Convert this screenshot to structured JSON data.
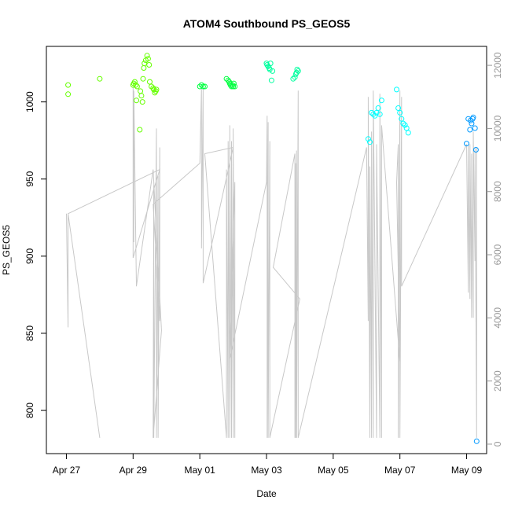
{
  "chart_data": {
    "type": "scatter",
    "title": "ATOM4 Southbound PS_GEOS5",
    "xlabel": "Date",
    "ylabel": "PS_GEOS5",
    "x_ticks": [
      "Apr 27",
      "Apr 29",
      "May 01",
      "May 03",
      "May 05",
      "May 07",
      "May 09"
    ],
    "xlim": [
      -0.6,
      12.6
    ],
    "ylim": [
      772,
      1036
    ],
    "y_ticks": [
      800,
      850,
      900,
      950,
      1000
    ],
    "y2lim": [
      -300,
      12600
    ],
    "y2_ticks": [
      0,
      2000,
      4000,
      6000,
      8000,
      10000,
      12000
    ],
    "grid": false,
    "legend": "none",
    "point_colors": [
      "#66ff00",
      "#00ff40",
      "#00ff9f",
      "#00ffff",
      "#0099ff"
    ],
    "line_color": "#c8c8c8",
    "series": [
      {
        "color": "#66ff00",
        "x": [
          0.05,
          0.05,
          1.0,
          2.0,
          2.02,
          2.05,
          2.08,
          2.1,
          2.12,
          2.2,
          2.22,
          2.25,
          2.28,
          2.3,
          2.32,
          2.34,
          2.38,
          2.42,
          2.45,
          2.48,
          2.5,
          2.55,
          2.6,
          2.62,
          2.65,
          2.68,
          2.7
        ],
        "y": [
          1011,
          1005,
          1015,
          1011,
          1012,
          1013,
          1011,
          1001,
          1010,
          982,
          1007,
          1004,
          1000,
          1015,
          1022,
          1025,
          1027,
          1030,
          1028,
          1024,
          1013,
          1010,
          1009,
          1008,
          1006,
          1007,
          1008
        ]
      },
      {
        "color": "#00ff40",
        "x": [
          4.0,
          4.05,
          4.1,
          4.15,
          4.8,
          4.85,
          4.88,
          4.9,
          4.92,
          4.95,
          4.98,
          5.0,
          5.02,
          5.05
        ],
        "y": [
          1010,
          1011,
          1010,
          1010,
          1015,
          1014,
          1013,
          1012,
          1011,
          1010,
          1011,
          1010,
          1012,
          1010
        ]
      },
      {
        "color": "#00ff9f",
        "x": [
          6.0,
          6.02,
          6.05,
          6.08,
          6.1,
          6.12,
          6.15,
          6.18,
          6.8,
          6.85,
          6.88,
          6.9,
          6.92,
          6.95
        ],
        "y": [
          1025,
          1024,
          1023,
          1022,
          1021,
          1025,
          1014,
          1020,
          1015,
          1016,
          1018,
          1019,
          1021,
          1020
        ]
      },
      {
        "color": "#00ffff",
        "x": [
          9.05,
          9.1,
          9.15,
          9.2,
          9.25,
          9.3,
          9.35,
          9.4,
          9.45,
          9.9,
          9.95,
          10.0,
          10.05,
          10.1,
          10.15,
          10.2,
          10.25
        ],
        "y": [
          976,
          974,
          993,
          992,
          991,
          993,
          996,
          992,
          1001,
          1008,
          996,
          993,
          989,
          986,
          985,
          983,
          980
        ]
      },
      {
        "color": "#0099ff",
        "x": [
          12.0,
          12.05,
          12.1,
          12.12,
          12.15,
          12.18,
          12.2,
          12.25,
          12.28,
          12.3
        ],
        "y": [
          973,
          989,
          982,
          988,
          986,
          989,
          990,
          983,
          969,
          780
        ]
      }
    ],
    "line_series": {
      "color": "#c8c8c8",
      "x": [
        0.0,
        0.05,
        0.05,
        1.0,
        0.05,
        2.8,
        2.0,
        2.0,
        2.02,
        2.02,
        2.1,
        2.6,
        2.85,
        2.6,
        2.62,
        2.62,
        2.7,
        2.7,
        2.75,
        2.75,
        2.8,
        2.8,
        2.6,
        4.0,
        4.05,
        4.05,
        4.1,
        4.1,
        5.0,
        4.15,
        4.8,
        4.8,
        4.85,
        4.85,
        4.9,
        4.9,
        4.95,
        4.95,
        5.0,
        5.0,
        5.05,
        5.05,
        4.9,
        6.0,
        6.02,
        6.02,
        6.05,
        6.05,
        6.1,
        6.1,
        7.0,
        6.2,
        6.85,
        6.85,
        6.88,
        6.88,
        6.9,
        6.9,
        6.95,
        6.95,
        9.0,
        9.05,
        9.05,
        9.1,
        9.1,
        9.15,
        9.15,
        9.2,
        9.2,
        9.3,
        9.3,
        9.4,
        9.4,
        9.45,
        9.45,
        10.0,
        9.9,
        9.95,
        9.95,
        10.0,
        10.0,
        10.05,
        10.05,
        12.0,
        12.05,
        12.05,
        12.1,
        12.1,
        12.15,
        12.15,
        12.2,
        12.2,
        12.25,
        12.25,
        12.3,
        12.3
      ],
      "y2": [
        7300,
        3700,
        7300,
        200,
        7300,
        8700,
        5900,
        11300,
        6400,
        11200,
        5000,
        8700,
        3600,
        200,
        8200,
        200,
        10000,
        200,
        8500,
        200,
        9400,
        3900,
        7600,
        8900,
        11300,
        6200,
        11300,
        5100,
        9400,
        9200,
        200,
        8700,
        200,
        9600,
        200,
        10100,
        200,
        9600,
        200,
        10000,
        200,
        8300,
        2700,
        8300,
        10400,
        200,
        10200,
        200,
        9600,
        200,
        4600,
        5600,
        9200,
        200,
        8900,
        200,
        9300,
        200,
        11200,
        200,
        9400,
        3900,
        11000,
        200,
        8800,
        200,
        9900,
        200,
        11200,
        200,
        9500,
        200,
        11100,
        200,
        10100,
        2600,
        8300,
        9500,
        200,
        11200,
        200,
        11000,
        5000,
        9500,
        4800,
        9500,
        4600,
        9500,
        4000,
        9200,
        4000,
        9900,
        5800,
        9400,
        200,
        9400
      ]
    }
  }
}
